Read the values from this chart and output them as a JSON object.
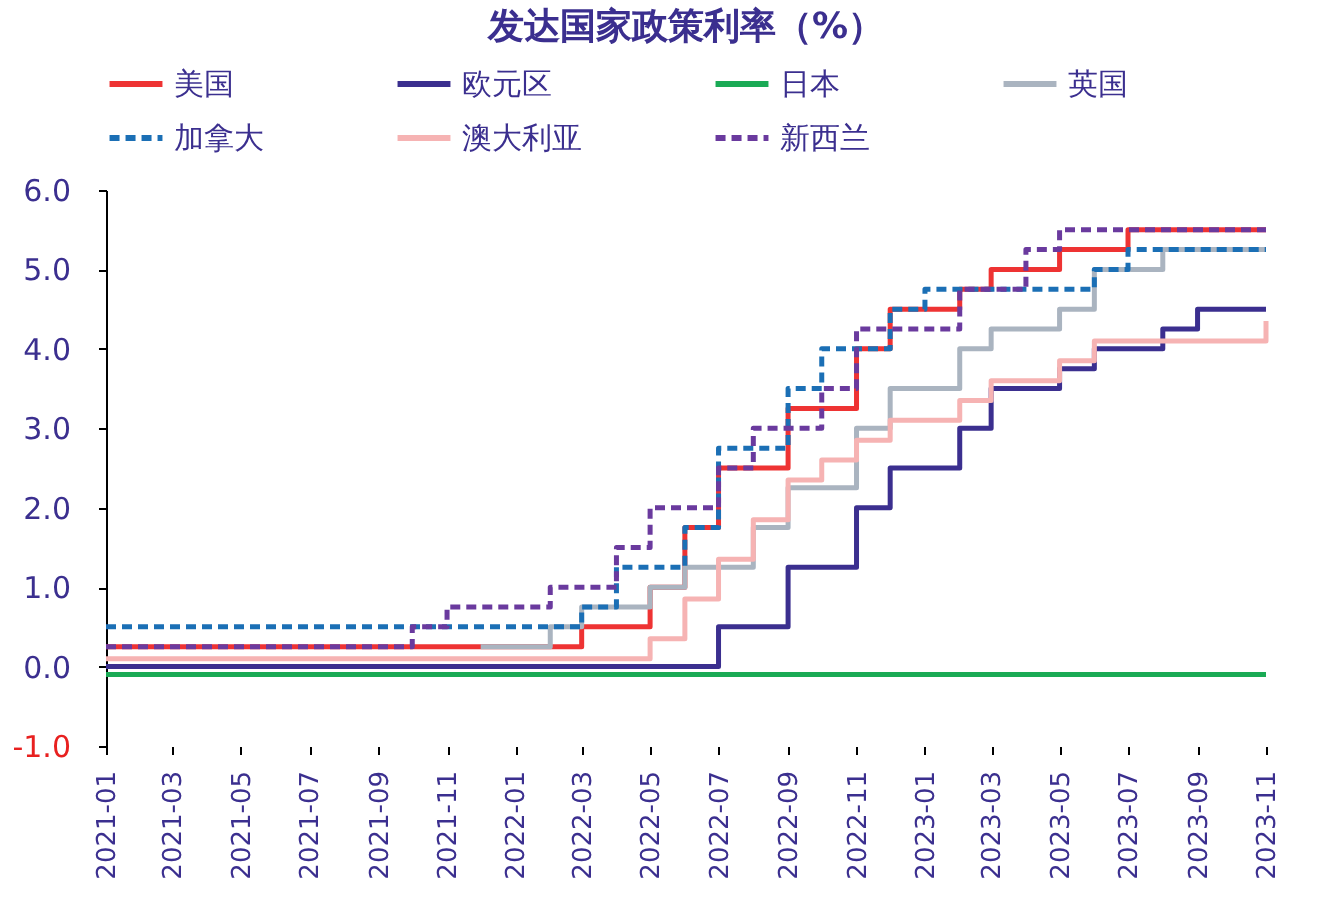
{
  "chart_data": {
    "type": "step",
    "title": "发达国家政策利率（%）",
    "x": [
      "2021-01",
      "2021-02",
      "2021-03",
      "2021-04",
      "2021-05",
      "2021-06",
      "2021-07",
      "2021-08",
      "2021-09",
      "2021-10",
      "2021-11",
      "2021-12",
      "2022-01",
      "2022-02",
      "2022-03",
      "2022-04",
      "2022-05",
      "2022-06",
      "2022-07",
      "2022-08",
      "2022-09",
      "2022-10",
      "2022-11",
      "2022-12",
      "2023-01",
      "2023-02",
      "2023-03",
      "2023-04",
      "2023-05",
      "2023-06",
      "2023-07",
      "2023-08",
      "2023-09",
      "2023-10",
      "2023-11"
    ],
    "series": [
      {
        "name": "美国",
        "color": "#ee3333",
        "line_style": "solid",
        "values": [
          0.25,
          0.25,
          0.25,
          0.25,
          0.25,
          0.25,
          0.25,
          0.25,
          0.25,
          0.25,
          0.25,
          0.25,
          0.25,
          0.25,
          0.5,
          0.5,
          1.0,
          1.75,
          2.5,
          2.5,
          3.25,
          3.25,
          4.0,
          4.5,
          4.5,
          4.75,
          5.0,
          5.0,
          5.25,
          5.25,
          5.5,
          5.5,
          5.5,
          5.5,
          5.5
        ]
      },
      {
        "name": "欧元区",
        "color": "#3b2f8f",
        "line_style": "solid",
        "values": [
          0,
          0,
          0,
          0,
          0,
          0,
          0,
          0,
          0,
          0,
          0,
          0,
          0,
          0,
          0,
          0,
          0,
          0,
          0.5,
          0.5,
          1.25,
          1.25,
          2.0,
          2.5,
          2.5,
          3.0,
          3.5,
          3.5,
          3.75,
          4.0,
          4.0,
          4.25,
          4.5,
          4.5,
          4.5
        ]
      },
      {
        "name": "日本",
        "color": "#1aaa55",
        "line_style": "solid",
        "values": [
          -0.1,
          -0.1,
          -0.1,
          -0.1,
          -0.1,
          -0.1,
          -0.1,
          -0.1,
          -0.1,
          -0.1,
          -0.1,
          -0.1,
          -0.1,
          -0.1,
          -0.1,
          -0.1,
          -0.1,
          -0.1,
          -0.1,
          -0.1,
          -0.1,
          -0.1,
          -0.1,
          -0.1,
          -0.1,
          -0.1,
          -0.1,
          -0.1,
          -0.1,
          -0.1,
          -0.1,
          -0.1,
          -0.1,
          -0.1,
          -0.1
        ]
      },
      {
        "name": "英国",
        "color": "#aab4c0",
        "line_style": "solid",
        "values": [
          null,
          null,
          null,
          null,
          null,
          null,
          null,
          null,
          null,
          null,
          null,
          0.25,
          0.25,
          0.5,
          0.75,
          0.75,
          1.0,
          1.25,
          1.25,
          1.75,
          2.25,
          2.25,
          3.0,
          3.5,
          3.5,
          4.0,
          4.25,
          4.25,
          4.5,
          5.0,
          5.0,
          5.25,
          5.25,
          5.25,
          5.25
        ]
      },
      {
        "name": "加拿大",
        "color": "#1b6fb5",
        "line_style": "dashed",
        "values": [
          0.5,
          0.5,
          0.5,
          0.5,
          0.5,
          0.5,
          0.5,
          0.5,
          0.5,
          0.5,
          0.5,
          0.5,
          0.5,
          0.5,
          0.75,
          1.25,
          1.25,
          1.75,
          2.75,
          2.75,
          3.5,
          4.0,
          4.0,
          4.5,
          4.75,
          4.75,
          4.75,
          4.75,
          4.75,
          5.0,
          5.25,
          5.25,
          5.25,
          5.25,
          5.25
        ]
      },
      {
        "name": "澳大利亚",
        "color": "#f6b3b3",
        "line_style": "solid",
        "values": [
          0.1,
          0.1,
          0.1,
          0.1,
          0.1,
          0.1,
          0.1,
          0.1,
          0.1,
          0.1,
          0.1,
          0.1,
          0.1,
          0.1,
          0.1,
          0.1,
          0.35,
          0.85,
          1.35,
          1.85,
          2.35,
          2.6,
          2.85,
          3.1,
          3.1,
          3.35,
          3.6,
          3.6,
          3.85,
          4.1,
          4.1,
          4.1,
          4.1,
          4.1,
          4.35
        ]
      },
      {
        "name": "新西兰",
        "color": "#6a3a9e",
        "line_style": "dashed",
        "values": [
          0.25,
          0.25,
          0.25,
          0.25,
          0.25,
          0.25,
          0.25,
          0.25,
          0.25,
          0.5,
          0.75,
          0.75,
          0.75,
          1.0,
          1.0,
          1.5,
          2.0,
          2.0,
          2.5,
          3.0,
          3.0,
          3.5,
          4.25,
          4.25,
          4.25,
          4.75,
          4.75,
          5.25,
          5.5,
          5.5,
          5.5,
          5.5,
          5.5,
          5.5,
          5.5
        ]
      }
    ],
    "xlim": [
      "2021-01",
      "2023-11"
    ],
    "xticks": [
      "2021-01",
      "2021-03",
      "2021-05",
      "2021-07",
      "2021-09",
      "2021-11",
      "2022-01",
      "2022-03",
      "2022-05",
      "2022-07",
      "2022-09",
      "2022-11",
      "2023-01",
      "2023-03",
      "2023-05",
      "2023-07",
      "2023-09",
      "2023-11"
    ],
    "ylim": [
      -1,
      6
    ],
    "yticks": [
      {
        "value": -1,
        "label": "-1.0"
      },
      {
        "value": 0,
        "label": "0.0"
      },
      {
        "value": 1,
        "label": "1.0"
      },
      {
        "value": 2,
        "label": "2.0"
      },
      {
        "value": 3,
        "label": "3.0"
      },
      {
        "value": 4,
        "label": "4.0"
      },
      {
        "value": 5,
        "label": "5.0"
      },
      {
        "value": 6,
        "label": "6.0"
      }
    ],
    "grid": false,
    "legend": "top",
    "marker": "none"
  }
}
